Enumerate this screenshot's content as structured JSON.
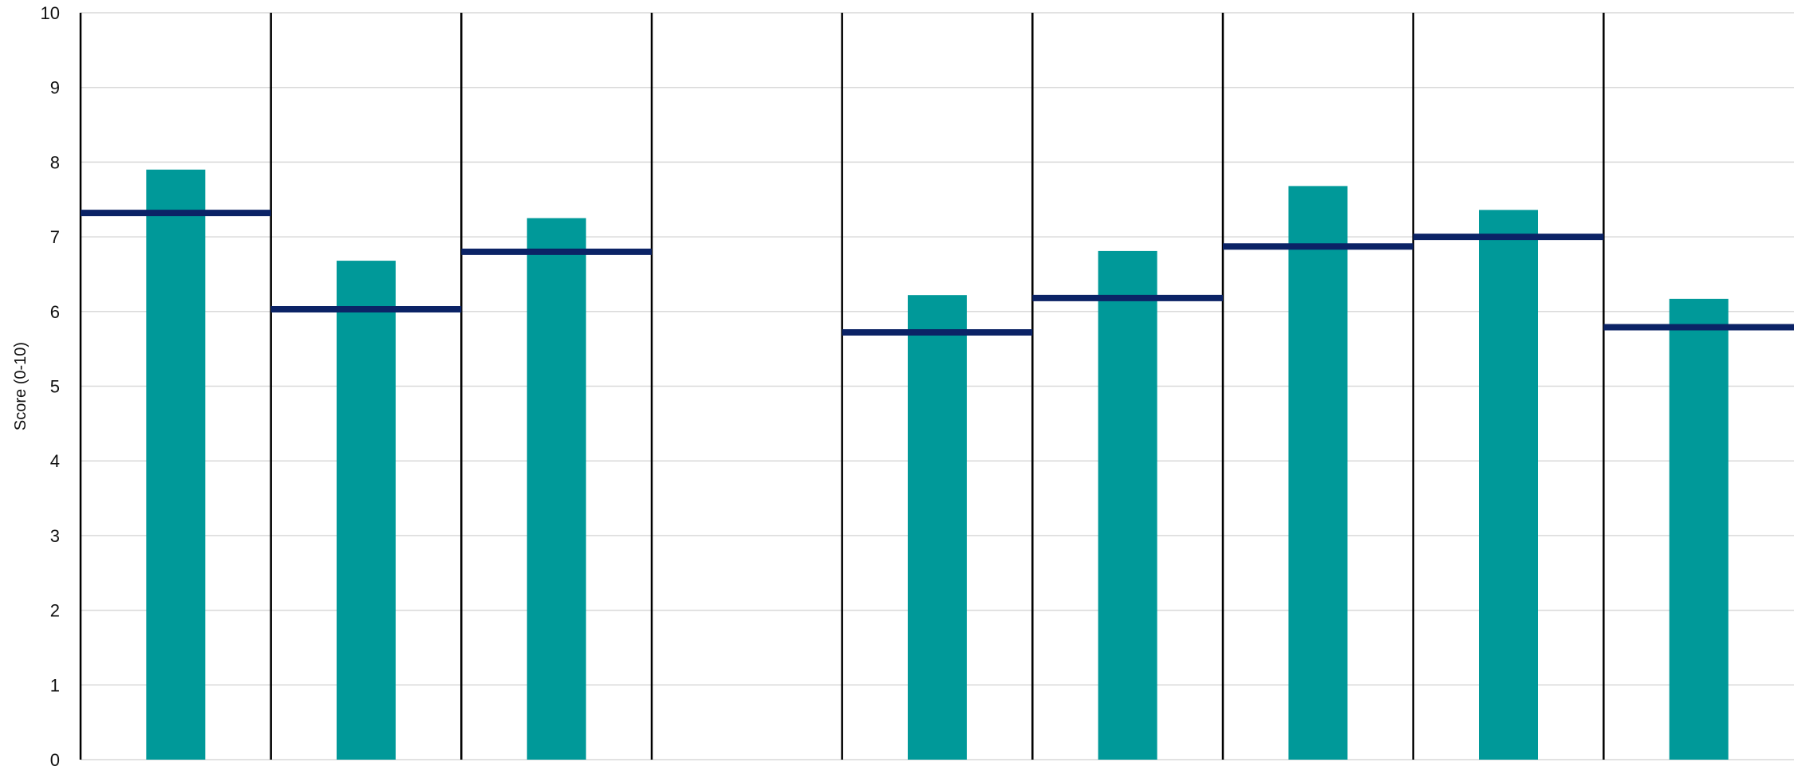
{
  "chart_data": {
    "type": "bar",
    "title": "",
    "xlabel": "",
    "ylabel": "Score (0-10)",
    "ylim": [
      0,
      10
    ],
    "yticks": [
      "0",
      "1",
      "2",
      "3",
      "4",
      "5",
      "6",
      "7",
      "8",
      "9",
      "10"
    ],
    "categories": [
      "",
      "",
      "",
      "",
      "",
      "",
      "",
      "",
      ""
    ],
    "series": [
      {
        "kind": "bar",
        "values": [
          7.9,
          6.68,
          7.25,
          null,
          6.22,
          6.81,
          7.68,
          7.36,
          6.17
        ]
      },
      {
        "kind": "horizontal-marker",
        "values": [
          7.32,
          6.03,
          6.8,
          null,
          5.72,
          6.18,
          6.87,
          7.0,
          5.79
        ]
      }
    ],
    "grid": true,
    "legend": "none",
    "colors": {
      "bar": "#009999",
      "marker": "#0B2366",
      "divider": "#000000",
      "grid": "#D9D9D9"
    }
  }
}
